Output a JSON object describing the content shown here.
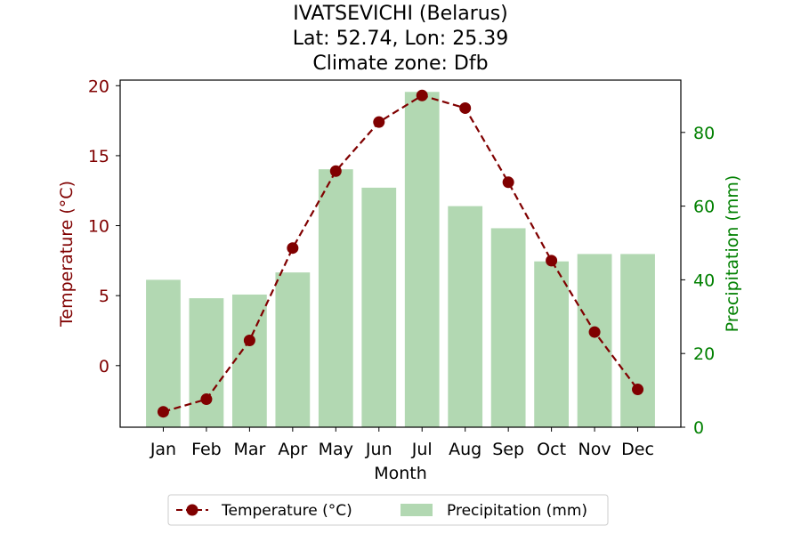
{
  "chart_data": {
    "type": "bar+line",
    "title_lines": [
      "IVATSEVICHI (Belarus)",
      "Lat: 52.74, Lon: 25.39",
      "Climate zone: Dfb"
    ],
    "xlabel": "Month",
    "categories": [
      "Jan",
      "Feb",
      "Mar",
      "Apr",
      "May",
      "Jun",
      "Jul",
      "Aug",
      "Sep",
      "Oct",
      "Nov",
      "Dec"
    ],
    "y_left": {
      "label": "Temperature (°C)",
      "range": [
        -4.4,
        20.4
      ],
      "ticks": [
        0,
        5,
        10,
        15,
        20
      ],
      "color": "#800000"
    },
    "y_right": {
      "label": "Precipitation (mm)",
      "range": [
        0,
        94.2
      ],
      "ticks": [
        0,
        20,
        40,
        60,
        80
      ],
      "color": "#008000"
    },
    "series": [
      {
        "name": "Temperature (°C)",
        "type": "line",
        "axis": "left",
        "color": "#800000",
        "linestyle": "dashed",
        "marker": "circle",
        "values": [
          -3.3,
          -2.4,
          1.8,
          8.4,
          13.9,
          17.4,
          19.3,
          18.4,
          13.1,
          7.5,
          2.4,
          -1.7
        ]
      },
      {
        "name": "Precipitation (mm)",
        "type": "bar",
        "axis": "right",
        "color": "#b2d8b2",
        "values": [
          40,
          35,
          36,
          42,
          70,
          65,
          91,
          60,
          54,
          45,
          47,
          47
        ]
      }
    ],
    "legend": {
      "placement": "bottom-center",
      "entries": [
        "Temperature (°C)",
        "Precipitation (mm)"
      ]
    },
    "grid": false
  }
}
